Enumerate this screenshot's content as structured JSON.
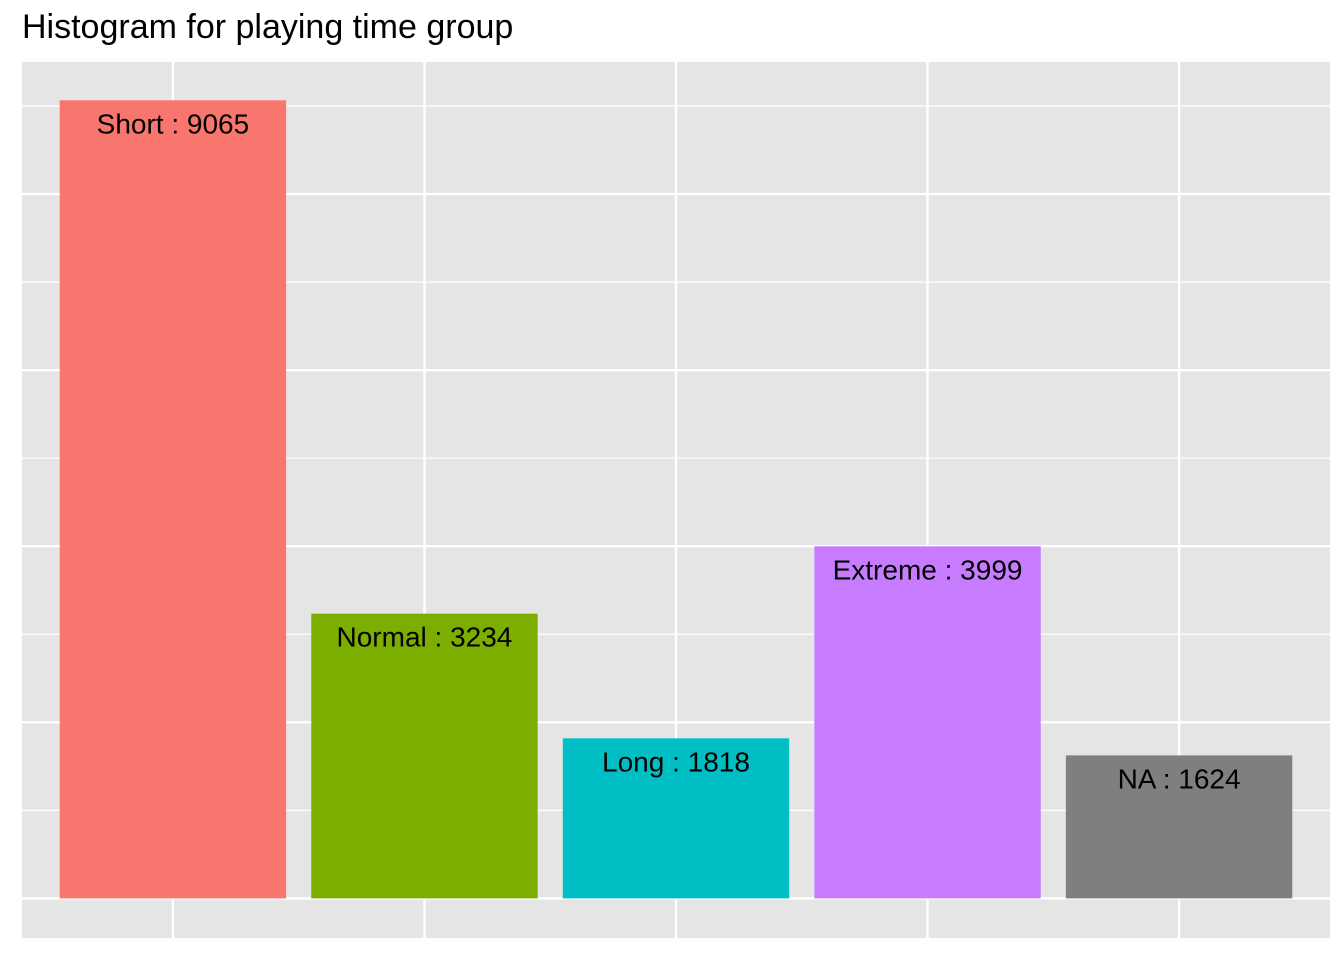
{
  "chart_data": {
    "type": "bar",
    "title": "Histogram for playing time group",
    "xlabel": "",
    "ylabel": "",
    "categories": [
      "Short",
      "Normal",
      "Long",
      "Extreme",
      "NA"
    ],
    "values": [
      9065,
      3234,
      1818,
      3999,
      1624
    ],
    "labels": [
      "Short : 9065",
      "Normal : 3234",
      "Long : 1818",
      "Extreme : 3999",
      "NA : 1624"
    ],
    "colors": [
      "#F8766D",
      "#7CAE00",
      "#00BFC4",
      "#C77CFF",
      "#7F7F7F"
    ],
    "panel_background": "#E5E5E5",
    "grid_color": "#FFFFFF",
    "grid": true,
    "axis_text_visible": false,
    "ylim": [
      -450,
      9500
    ]
  }
}
